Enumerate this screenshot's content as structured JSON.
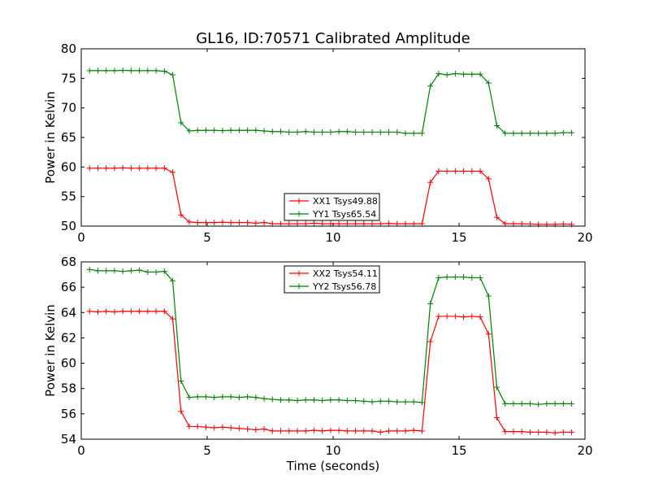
{
  "figure": {
    "title": "GL16, ID:70571 Calibrated Amplitude",
    "xlabel": "Time (seconds)"
  },
  "chart_data": [
    {
      "type": "line",
      "ylabel": "Power in Kelvin",
      "xlim": [
        0,
        20
      ],
      "ylim": [
        50,
        80
      ],
      "xticks": [
        0,
        5,
        10,
        15,
        20
      ],
      "yticks": [
        50,
        55,
        60,
        65,
        70,
        75,
        80
      ],
      "grid": false,
      "legend_position": "bottom-center",
      "series": [
        {
          "name": "XX1 Tsys49.88",
          "color": "#ff0000",
          "x": [
            0.33,
            0.66,
            0.99,
            1.32,
            1.65,
            1.98,
            2.31,
            2.64,
            2.97,
            3.3,
            3.63,
            3.96,
            4.29,
            4.62,
            4.95,
            5.28,
            5.61,
            5.94,
            6.27,
            6.6,
            6.93,
            7.26,
            7.59,
            7.92,
            8.25,
            8.58,
            8.91,
            9.24,
            9.57,
            9.9,
            10.23,
            10.56,
            10.89,
            11.22,
            11.55,
            11.88,
            12.21,
            12.54,
            12.87,
            13.2,
            13.53,
            13.86,
            14.19,
            14.52,
            14.85,
            15.18,
            15.51,
            15.84,
            16.17,
            16.5,
            16.83,
            17.16,
            17.49,
            17.82,
            18.15,
            18.48,
            18.81,
            19.14,
            19.47
          ],
          "y": [
            59.8,
            59.8,
            59.8,
            59.8,
            59.85,
            59.8,
            59.8,
            59.8,
            59.8,
            59.8,
            59.1,
            51.9,
            50.7,
            50.6,
            50.6,
            50.6,
            50.65,
            50.6,
            50.6,
            50.6,
            50.5,
            50.6,
            50.4,
            50.4,
            50.4,
            50.4,
            50.4,
            50.5,
            50.4,
            50.4,
            50.4,
            50.4,
            50.4,
            50.4,
            50.4,
            50.4,
            50.45,
            50.4,
            50.4,
            50.4,
            50.4,
            57.4,
            59.3,
            59.3,
            59.3,
            59.3,
            59.3,
            59.3,
            58.0,
            51.5,
            50.4,
            50.4,
            50.4,
            50.35,
            50.3,
            50.3,
            50.3,
            50.35,
            50.3
          ]
        },
        {
          "name": "YY1 Tsys65.54",
          "color": "#008000",
          "x": [
            0.33,
            0.66,
            0.99,
            1.32,
            1.65,
            1.98,
            2.31,
            2.64,
            2.97,
            3.3,
            3.63,
            3.96,
            4.29,
            4.62,
            4.95,
            5.28,
            5.61,
            5.94,
            6.27,
            6.6,
            6.93,
            7.26,
            7.59,
            7.92,
            8.25,
            8.58,
            8.91,
            9.24,
            9.57,
            9.9,
            10.23,
            10.56,
            10.89,
            11.22,
            11.55,
            11.88,
            12.21,
            12.54,
            12.87,
            13.2,
            13.53,
            13.86,
            14.19,
            14.52,
            14.85,
            15.18,
            15.51,
            15.84,
            16.17,
            16.5,
            16.83,
            17.16,
            17.49,
            17.82,
            18.15,
            18.48,
            18.81,
            19.14,
            19.47
          ],
          "y": [
            76.3,
            76.3,
            76.3,
            76.3,
            76.35,
            76.3,
            76.3,
            76.3,
            76.3,
            76.2,
            75.6,
            67.5,
            66.1,
            66.2,
            66.2,
            66.2,
            66.15,
            66.2,
            66.2,
            66.2,
            66.2,
            66.1,
            66.0,
            66.0,
            65.9,
            65.9,
            66.0,
            65.9,
            65.9,
            65.9,
            66.0,
            66.0,
            65.9,
            65.9,
            65.9,
            65.9,
            65.9,
            65.9,
            65.7,
            65.7,
            65.7,
            73.7,
            75.8,
            75.6,
            75.8,
            75.7,
            75.7,
            75.7,
            74.2,
            67.0,
            65.7,
            65.7,
            65.7,
            65.7,
            65.7,
            65.7,
            65.7,
            65.8,
            65.8
          ]
        }
      ]
    },
    {
      "type": "line",
      "ylabel": "Power in Kelvin",
      "xlabel": "Time (seconds)",
      "xlim": [
        0,
        20
      ],
      "ylim": [
        54,
        68
      ],
      "xticks": [
        0,
        5,
        10,
        15,
        20
      ],
      "yticks": [
        54,
        56,
        58,
        60,
        62,
        64,
        66,
        68
      ],
      "grid": false,
      "legend_position": "top-center",
      "series": [
        {
          "name": "XX2 Tsys54.11",
          "color": "#ff0000",
          "x": [
            0.33,
            0.66,
            0.99,
            1.32,
            1.65,
            1.98,
            2.31,
            2.64,
            2.97,
            3.3,
            3.63,
            3.96,
            4.29,
            4.62,
            4.95,
            5.28,
            5.61,
            5.94,
            6.27,
            6.6,
            6.93,
            7.26,
            7.59,
            7.92,
            8.25,
            8.58,
            8.91,
            9.24,
            9.57,
            9.9,
            10.23,
            10.56,
            10.89,
            11.22,
            11.55,
            11.88,
            12.21,
            12.54,
            12.87,
            13.2,
            13.53,
            13.86,
            14.19,
            14.52,
            14.85,
            15.18,
            15.51,
            15.84,
            16.17,
            16.5,
            16.83,
            17.16,
            17.49,
            17.82,
            18.15,
            18.48,
            18.81,
            19.14,
            19.47
          ],
          "y": [
            64.1,
            64.05,
            64.1,
            64.05,
            64.1,
            64.1,
            64.1,
            64.1,
            64.1,
            64.1,
            63.5,
            56.2,
            55.0,
            55.0,
            54.95,
            54.9,
            54.95,
            54.9,
            54.85,
            54.8,
            54.75,
            54.8,
            54.65,
            54.65,
            54.65,
            54.65,
            54.65,
            54.7,
            54.65,
            54.7,
            54.7,
            54.65,
            54.65,
            54.65,
            54.65,
            54.55,
            54.65,
            54.65,
            54.65,
            54.7,
            54.65,
            61.7,
            63.7,
            63.7,
            63.7,
            63.65,
            63.7,
            63.65,
            62.3,
            55.7,
            54.6,
            54.6,
            54.6,
            54.55,
            54.55,
            54.55,
            54.5,
            54.55,
            54.55
          ]
        },
        {
          "name": "YY2 Tsys56.78",
          "color": "#008000",
          "x": [
            0.33,
            0.66,
            0.99,
            1.32,
            1.65,
            1.98,
            2.31,
            2.64,
            2.97,
            3.3,
            3.63,
            3.96,
            4.29,
            4.62,
            4.95,
            5.28,
            5.61,
            5.94,
            6.27,
            6.6,
            6.93,
            7.26,
            7.59,
            7.92,
            8.25,
            8.58,
            8.91,
            9.24,
            9.57,
            9.9,
            10.23,
            10.56,
            10.89,
            11.22,
            11.55,
            11.88,
            12.21,
            12.54,
            12.87,
            13.2,
            13.53,
            13.86,
            14.19,
            14.52,
            14.85,
            15.18,
            15.51,
            15.84,
            16.17,
            16.5,
            16.83,
            17.16,
            17.49,
            17.82,
            18.15,
            18.48,
            18.81,
            19.14,
            19.47
          ],
          "y": [
            67.4,
            67.3,
            67.3,
            67.3,
            67.25,
            67.3,
            67.35,
            67.2,
            67.2,
            67.25,
            66.5,
            58.6,
            57.3,
            57.35,
            57.35,
            57.3,
            57.35,
            57.35,
            57.3,
            57.35,
            57.3,
            57.2,
            57.15,
            57.1,
            57.1,
            57.05,
            57.1,
            57.1,
            57.05,
            57.1,
            57.1,
            57.05,
            57.05,
            57.0,
            56.95,
            57.0,
            57.0,
            56.95,
            56.95,
            56.95,
            56.9,
            64.7,
            66.75,
            66.8,
            66.8,
            66.8,
            66.75,
            66.75,
            65.3,
            58.1,
            56.8,
            56.8,
            56.8,
            56.8,
            56.75,
            56.8,
            56.8,
            56.8,
            56.8
          ]
        }
      ]
    }
  ]
}
